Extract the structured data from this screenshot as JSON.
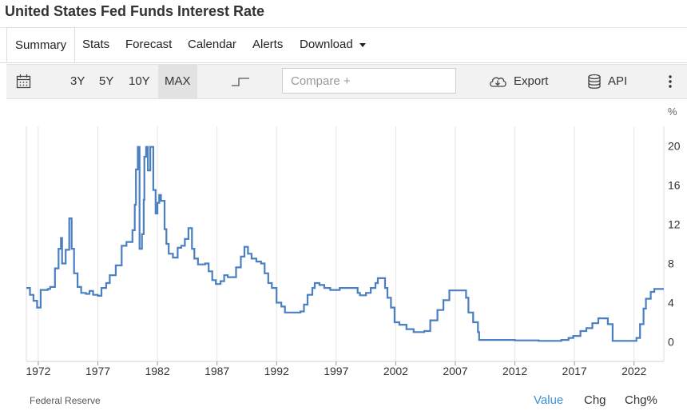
{
  "page": {
    "title": "United States Fed Funds Interest Rate"
  },
  "tabs": [
    {
      "label": "Summary"
    },
    {
      "label": "Stats"
    },
    {
      "label": "Forecast"
    },
    {
      "label": "Calendar"
    },
    {
      "label": "Alerts"
    },
    {
      "label": "Download"
    }
  ],
  "toolbar": {
    "ranges": [
      "3Y",
      "5Y",
      "10Y",
      "MAX"
    ],
    "active_range": "MAX",
    "compare_placeholder": "Compare +",
    "export_label": "Export",
    "api_label": "API"
  },
  "footer": {
    "source": "Federal Reserve",
    "views": [
      "Value",
      "Chg",
      "Chg%"
    ],
    "active_view": "Value"
  },
  "colors": {
    "line": "#4a7fc1",
    "active_view": "#3a8fd8",
    "grid": "#e6e6e6"
  },
  "chart_data": {
    "type": "line",
    "title": "",
    "ylabel": "%",
    "xlim": [
      1971.0,
      2024.5
    ],
    "ylim": [
      -2,
      22
    ],
    "y_ticks": [
      0,
      4,
      8,
      12,
      16,
      20
    ],
    "x_ticks": [
      1972,
      1977,
      1982,
      1987,
      1992,
      1997,
      2002,
      2007,
      2012,
      2017,
      2022
    ],
    "grid": "vertical",
    "series": [
      {
        "values": [
          [
            1971.0,
            5.5
          ],
          [
            1971.3,
            4.8
          ],
          [
            1971.6,
            4.2
          ],
          [
            1971.9,
            3.5
          ],
          [
            1972.1,
            3.5
          ],
          [
            1972.2,
            5.3
          ],
          [
            1972.8,
            5.4
          ],
          [
            1973.0,
            5.6
          ],
          [
            1973.4,
            7.5
          ],
          [
            1973.7,
            9.5
          ],
          [
            1973.9,
            10.6
          ],
          [
            1974.0,
            8.0
          ],
          [
            1974.3,
            9.4
          ],
          [
            1974.6,
            12.6
          ],
          [
            1974.8,
            9.5
          ],
          [
            1975.0,
            7.0
          ],
          [
            1975.3,
            5.6
          ],
          [
            1975.6,
            5.0
          ],
          [
            1976.0,
            4.9
          ],
          [
            1976.3,
            5.2
          ],
          [
            1976.6,
            4.8
          ],
          [
            1977.0,
            4.7
          ],
          [
            1977.3,
            5.5
          ],
          [
            1977.7,
            6.0
          ],
          [
            1978.0,
            6.8
          ],
          [
            1978.5,
            7.8
          ],
          [
            1979.0,
            9.8
          ],
          [
            1979.4,
            10.2
          ],
          [
            1979.9,
            11.4
          ],
          [
            1980.1,
            14.0
          ],
          [
            1980.2,
            17.6
          ],
          [
            1980.35,
            19.9
          ],
          [
            1980.5,
            9.5
          ],
          [
            1980.7,
            11.0
          ],
          [
            1980.85,
            14.5
          ],
          [
            1980.9,
            18.9
          ],
          [
            1981.05,
            19.9
          ],
          [
            1981.2,
            17.5
          ],
          [
            1981.4,
            19.9
          ],
          [
            1981.65,
            15.5
          ],
          [
            1981.85,
            13.1
          ],
          [
            1982.0,
            14.2
          ],
          [
            1982.15,
            15.0
          ],
          [
            1982.3,
            14.4
          ],
          [
            1982.6,
            11.5
          ],
          [
            1982.75,
            10.0
          ],
          [
            1982.95,
            9.0
          ],
          [
            1983.3,
            8.6
          ],
          [
            1983.7,
            9.6
          ],
          [
            1984.0,
            9.8
          ],
          [
            1984.3,
            10.5
          ],
          [
            1984.6,
            11.6
          ],
          [
            1984.9,
            9.5
          ],
          [
            1985.1,
            8.5
          ],
          [
            1985.4,
            7.9
          ],
          [
            1985.7,
            7.9
          ],
          [
            1986.0,
            8.0
          ],
          [
            1986.3,
            7.2
          ],
          [
            1986.6,
            6.3
          ],
          [
            1986.9,
            5.9
          ],
          [
            1987.3,
            6.2
          ],
          [
            1987.6,
            6.8
          ],
          [
            1987.9,
            6.6
          ],
          [
            1988.3,
            6.6
          ],
          [
            1988.6,
            7.6
          ],
          [
            1989.0,
            8.7
          ],
          [
            1989.3,
            9.7
          ],
          [
            1989.6,
            9.0
          ],
          [
            1989.9,
            8.5
          ],
          [
            1990.3,
            8.2
          ],
          [
            1990.7,
            8.0
          ],
          [
            1991.0,
            7.0
          ],
          [
            1991.3,
            6.0
          ],
          [
            1991.6,
            5.5
          ],
          [
            1992.0,
            4.0
          ],
          [
            1992.4,
            3.6
          ],
          [
            1992.7,
            3.0
          ],
          [
            1993.2,
            3.0
          ],
          [
            1993.6,
            3.0
          ],
          [
            1994.0,
            3.1
          ],
          [
            1994.3,
            3.8
          ],
          [
            1994.6,
            4.8
          ],
          [
            1995.0,
            5.5
          ],
          [
            1995.2,
            6.0
          ],
          [
            1995.6,
            5.8
          ],
          [
            1996.0,
            5.5
          ],
          [
            1996.5,
            5.3
          ],
          [
            1997.0,
            5.3
          ],
          [
            1997.3,
            5.5
          ],
          [
            1998.0,
            5.5
          ],
          [
            1998.6,
            5.5
          ],
          [
            1998.8,
            5.0
          ],
          [
            1999.0,
            4.75
          ],
          [
            1999.5,
            5.0
          ],
          [
            1999.9,
            5.5
          ],
          [
            2000.3,
            6.0
          ],
          [
            2000.5,
            6.5
          ],
          [
            2000.9,
            6.5
          ],
          [
            2001.1,
            5.5
          ],
          [
            2001.3,
            4.5
          ],
          [
            2001.6,
            3.5
          ],
          [
            2001.9,
            2.0
          ],
          [
            2002.3,
            1.75
          ],
          [
            2002.9,
            1.3
          ],
          [
            2003.5,
            1.0
          ],
          [
            2004.0,
            1.0
          ],
          [
            2004.4,
            1.1
          ],
          [
            2004.9,
            2.2
          ],
          [
            2005.5,
            3.25
          ],
          [
            2006.0,
            4.25
          ],
          [
            2006.5,
            5.25
          ],
          [
            2007.0,
            5.25
          ],
          [
            2007.6,
            5.25
          ],
          [
            2007.9,
            4.5
          ],
          [
            2008.1,
            3.0
          ],
          [
            2008.5,
            2.0
          ],
          [
            2008.9,
            1.0
          ],
          [
            2009.0,
            0.2
          ],
          [
            2010.0,
            0.2
          ],
          [
            2012.0,
            0.15
          ],
          [
            2014.0,
            0.1
          ],
          [
            2015.9,
            0.2
          ],
          [
            2016.5,
            0.4
          ],
          [
            2016.9,
            0.6
          ],
          [
            2017.5,
            1.1
          ],
          [
            2018.0,
            1.4
          ],
          [
            2018.5,
            1.9
          ],
          [
            2019.0,
            2.4
          ],
          [
            2019.5,
            2.4
          ],
          [
            2019.8,
            1.8
          ],
          [
            2020.2,
            0.1
          ],
          [
            2021.0,
            0.1
          ],
          [
            2021.9,
            0.1
          ],
          [
            2022.2,
            0.4
          ],
          [
            2022.5,
            1.8
          ],
          [
            2022.8,
            3.4
          ],
          [
            2023.0,
            4.4
          ],
          [
            2023.4,
            5.1
          ],
          [
            2023.7,
            5.4
          ],
          [
            2024.5,
            5.4
          ]
        ]
      }
    ]
  }
}
